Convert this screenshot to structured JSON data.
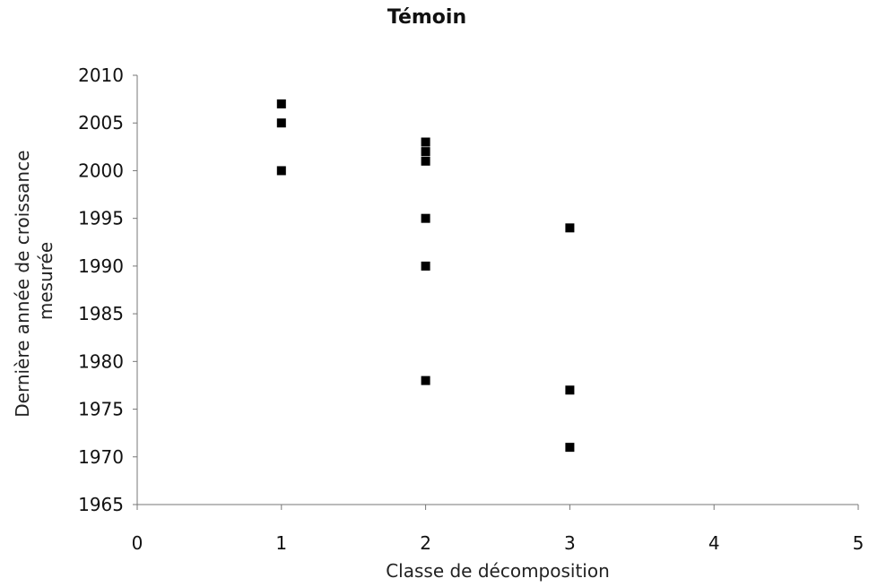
{
  "chart_data": {
    "type": "scatter",
    "title": "Témoin",
    "xlabel": "Classe de décomposition",
    "ylabel_lines": [
      "Dernière année de croissance",
      "mesurée"
    ],
    "xlim": [
      0,
      5
    ],
    "ylim": [
      1965,
      2010
    ],
    "x_ticks": [
      0,
      1,
      2,
      3,
      4,
      5
    ],
    "y_ticks": [
      1965,
      1970,
      1975,
      1980,
      1985,
      1990,
      1995,
      2000,
      2005,
      2010
    ],
    "grid": false,
    "legend": "none",
    "marker": "square",
    "marker_color": "#000000",
    "points": [
      {
        "x": 1,
        "y": 2007
      },
      {
        "x": 1,
        "y": 2005
      },
      {
        "x": 1,
        "y": 2000
      },
      {
        "x": 2,
        "y": 2003
      },
      {
        "x": 2,
        "y": 2002
      },
      {
        "x": 2,
        "y": 2001
      },
      {
        "x": 2,
        "y": 1995
      },
      {
        "x": 2,
        "y": 1990
      },
      {
        "x": 2,
        "y": 1978
      },
      {
        "x": 3,
        "y": 1994
      },
      {
        "x": 3,
        "y": 1977
      },
      {
        "x": 3,
        "y": 1971
      }
    ]
  }
}
